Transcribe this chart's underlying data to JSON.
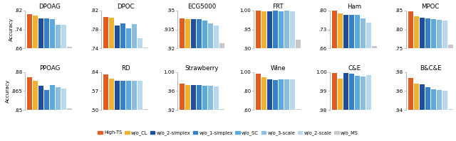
{
  "subplots": [
    {
      "title": "DPOAG",
      "ylim": [
        0.66,
        0.82
      ],
      "yticks": [
        0.66,
        0.74,
        0.82
      ],
      "values": [
        0.806,
        0.8,
        0.786,
        0.786,
        0.784,
        0.76,
        0.76,
        0.668
      ]
    },
    {
      "title": "DPOC",
      "ylim": [
        0.74,
        0.82
      ],
      "yticks": [
        0.74,
        0.78,
        0.82
      ],
      "values": [
        0.806,
        0.805,
        0.789,
        0.793,
        0.782,
        0.791,
        0.762,
        0.742
      ]
    },
    {
      "title": "ECG5000",
      "ylim": [
        0.92,
        0.95
      ],
      "yticks": [
        0.92,
        0.935,
        0.95
      ],
      "values": [
        0.944,
        0.943,
        0.943,
        0.943,
        0.942,
        0.94,
        0.938,
        0.924
      ]
    },
    {
      "title": "FRT",
      "ylim": [
        0.9,
        1.0
      ],
      "yticks": [
        0.9,
        0.95,
        1.0
      ],
      "values": [
        1.0,
        0.998,
        0.998,
        0.999,
        0.998,
        0.999,
        0.998,
        0.923
      ]
    },
    {
      "title": "Ham",
      "ylim": [
        0.66,
        0.8
      ],
      "yticks": [
        0.66,
        0.73,
        0.8
      ],
      "values": [
        0.8,
        0.79,
        0.785,
        0.785,
        0.784,
        0.77,
        0.755,
        0.668
      ]
    },
    {
      "title": "MPOC",
      "ylim": [
        0.75,
        0.85
      ],
      "yticks": [
        0.75,
        0.8,
        0.85
      ],
      "values": [
        0.848,
        0.835,
        0.832,
        0.83,
        0.828,
        0.826,
        0.824,
        0.76
      ]
    },
    {
      "title": "PPOAG",
      "ylim": [
        0.85,
        0.88
      ],
      "yticks": [
        0.85,
        0.865,
        0.88
      ],
      "values": [
        0.876,
        0.873,
        0.869,
        0.866,
        0.87,
        0.868,
        0.867,
        0.851
      ]
    },
    {
      "title": "RD",
      "ylim": [
        0.5,
        0.64
      ],
      "yticks": [
        0.5,
        0.57,
        0.64
      ],
      "values": [
        0.632,
        0.615,
        0.608,
        0.609,
        0.609,
        0.608,
        0.608,
        0.503
      ]
    },
    {
      "title": "Strawberry",
      "ylim": [
        0.92,
        1.0
      ],
      "yticks": [
        0.92,
        0.96,
        1.0
      ],
      "values": [
        0.975,
        0.972,
        0.972,
        0.972,
        0.971,
        0.971,
        0.97,
        0.922
      ]
    },
    {
      "title": "Wine",
      "ylim": [
        0.6,
        1.0
      ],
      "yticks": [
        0.6,
        0.8,
        1.0
      ],
      "values": [
        0.983,
        0.944,
        0.921,
        0.917,
        0.921,
        0.921,
        0.92,
        0.611
      ]
    },
    {
      "title": "C&E",
      "ylim": [
        0.98,
        1.0
      ],
      "yticks": [
        0.98,
        0.99,
        1.0
      ],
      "values": [
        0.9995,
        0.9965,
        0.9995,
        0.999,
        0.998,
        0.9975,
        0.9985,
        0.98
      ]
    },
    {
      "title": "B&C&E",
      "ylim": [
        0.94,
        0.98
      ],
      "yticks": [
        0.94,
        0.96,
        0.98
      ],
      "values": [
        0.974,
        0.968,
        0.967,
        0.964,
        0.962,
        0.961,
        0.96,
        0.941
      ]
    }
  ],
  "bar_colors": [
    "#E05C20",
    "#F0B030",
    "#1E4F9C",
    "#3580C8",
    "#5AAAE0",
    "#8BBEDD",
    "#B8D8EE",
    "#C8C8C8"
  ],
  "legend_labels": [
    "High-TS",
    "w/o_CL",
    "w/o_2-simplex",
    "w/o_1-simplex",
    "w/o_SC",
    "w/o_3-scale",
    "w/o_2-scale",
    "w/o_MS"
  ],
  "ylabel": "Accuracy"
}
